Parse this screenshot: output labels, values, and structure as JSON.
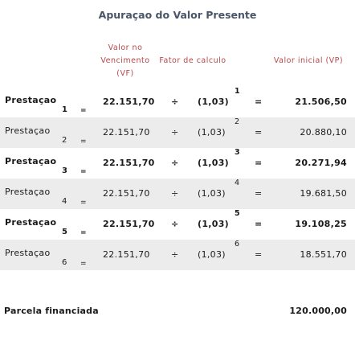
{
  "title": "Apuraçao do Valor Presente",
  "headers": {
    "vf_line1": "Valor no",
    "vf_line2": "Vencimento",
    "vf_line3": "(VF)",
    "fator": "Fator de calculo",
    "vi": "Valor inicial (VP)"
  },
  "rows": [
    {
      "label": "Prestaçao",
      "index": "1",
      "eq1": "=",
      "vf": "22.151,70",
      "op": "÷",
      "factor": "(1,03)",
      "exponent": "1",
      "eq2": "=",
      "vp": "21.506,50"
    },
    {
      "label": "Prestaçao",
      "index": "2",
      "eq1": "=",
      "vf": "22.151,70",
      "op": "÷",
      "factor": "(1,03)",
      "exponent": "2",
      "eq2": "=",
      "vp": "20.880,10"
    },
    {
      "label": "Prestaçao",
      "index": "3",
      "eq1": "=",
      "vf": "22.151,70",
      "op": "÷",
      "factor": "(1,03)",
      "exponent": "3",
      "eq2": "=",
      "vp": "20.271,94"
    },
    {
      "label": "Prestaçao",
      "index": "4",
      "eq1": "=",
      "vf": "22.151,70",
      "op": "÷",
      "factor": "(1,03)",
      "exponent": "4",
      "eq2": "=",
      "vp": "19.681,50"
    },
    {
      "label": "Prestaçao",
      "index": "5",
      "eq1": "=",
      "vf": "22.151,70",
      "op": "÷",
      "factor": "(1,03)",
      "exponent": "5",
      "eq2": "=",
      "vp": "19.108,25"
    },
    {
      "label": "Prestaçao",
      "index": "6",
      "eq1": "=",
      "vf": "22.151,70",
      "op": "÷",
      "factor": "(1,03)",
      "exponent": "6",
      "eq2": "=",
      "vp": "18.551,70"
    }
  ],
  "total": {
    "label": "Parcela financiada",
    "value": "120.000,00"
  },
  "colors": {
    "title": "#4a5568",
    "header": "#b5484c",
    "shade": "#ececec"
  }
}
